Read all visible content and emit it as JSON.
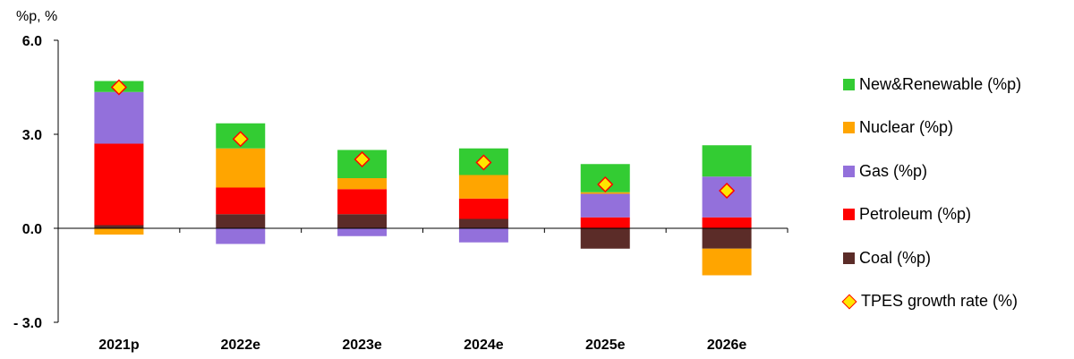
{
  "chart_data": {
    "type": "bar",
    "stacked": true,
    "unit_label": "%p, %",
    "categories": [
      "2021p",
      "2022e",
      "2023e",
      "2024e",
      "2025e",
      "2026e"
    ],
    "series": [
      {
        "name": "Coal (%p)",
        "color": "#5B2C28",
        "values": [
          0.1,
          0.45,
          0.45,
          0.3,
          -0.65,
          -0.65
        ]
      },
      {
        "name": "Petroleum (%p)",
        "color": "#FF0000",
        "values": [
          2.6,
          0.85,
          0.8,
          0.65,
          0.35,
          0.35
        ]
      },
      {
        "name": "Gas (%p)",
        "color": "#9370DB",
        "values": [
          1.65,
          -0.5,
          -0.25,
          -0.45,
          0.75,
          1.3
        ]
      },
      {
        "name": "Nuclear (%p)",
        "color": "#FFA500",
        "values": [
          -0.2,
          1.25,
          0.35,
          0.75,
          0.05,
          -0.85
        ]
      },
      {
        "name": "New&Renewable (%p)",
        "color": "#33CC33",
        "values": [
          0.35,
          0.8,
          0.9,
          0.85,
          0.9,
          1.0
        ]
      }
    ],
    "line_series": {
      "name": "TPES growth rate (%)",
      "marker": "diamond",
      "fill": "#FFE600",
      "edge": "#FF0000",
      "values": [
        4.5,
        2.85,
        2.2,
        2.1,
        1.4,
        1.2
      ]
    },
    "legend_order": [
      "New&Renewable (%p)",
      "Nuclear (%p)",
      "Gas (%p)",
      "Petroleum (%p)",
      "Coal (%p)",
      "TPES growth rate (%)"
    ],
    "legend_position": "right",
    "ylim": [
      -3.0,
      6.0
    ],
    "yticks": [
      -3.0,
      0.0,
      3.0,
      6.0
    ],
    "ytick_labels": [
      "- 3.0",
      "0.0",
      "3.0",
      "6.0"
    ],
    "grid": false
  }
}
